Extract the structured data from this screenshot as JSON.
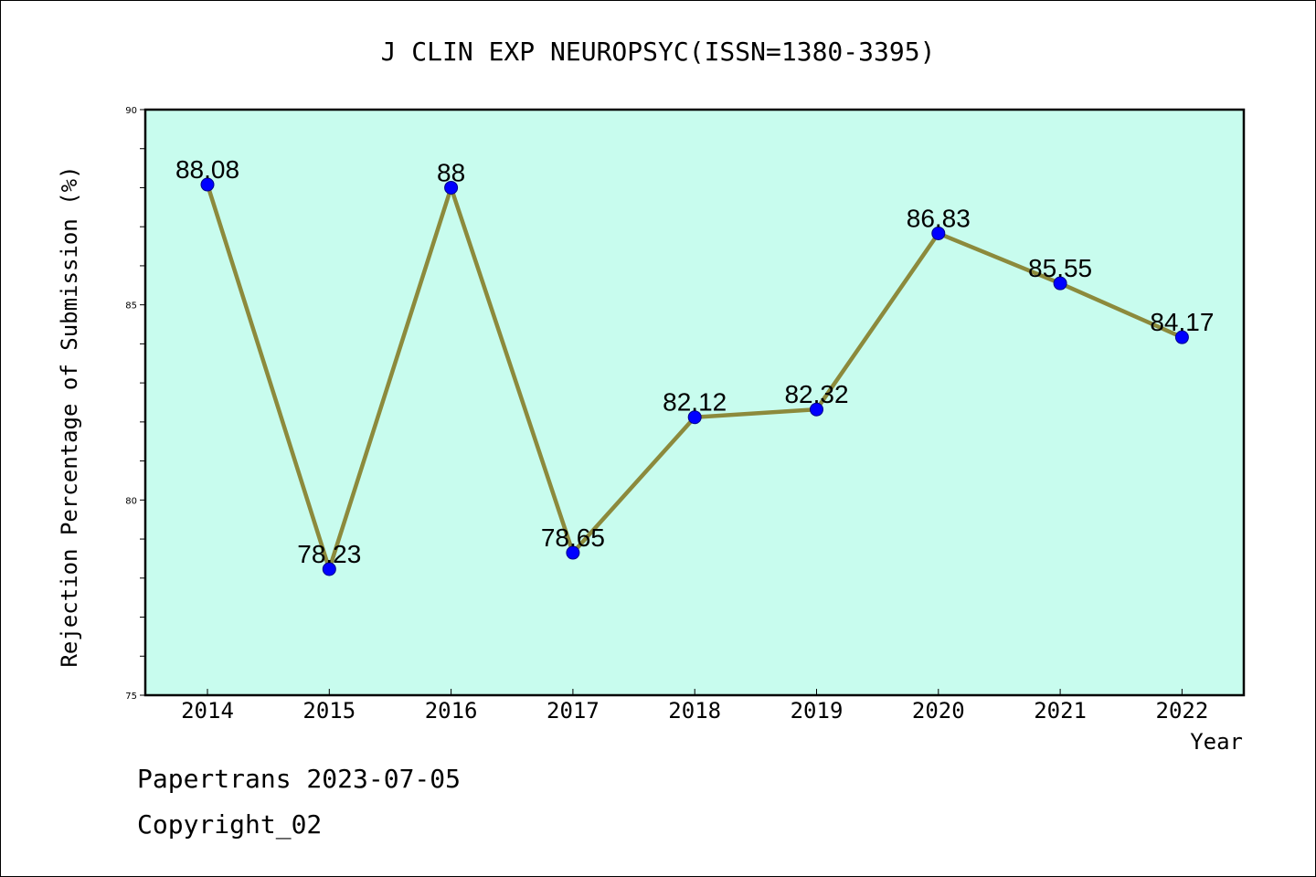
{
  "chart_data": {
    "type": "line",
    "title": "J CLIN EXP NEUROPSYC(ISSN=1380-3395)",
    "xlabel": "Year",
    "ylabel": "Rejection Percentage of Submission (%)",
    "categories": [
      "2014",
      "2015",
      "2016",
      "2017",
      "2018",
      "2019",
      "2020",
      "2021",
      "2022"
    ],
    "values": [
      88.08,
      78.23,
      88,
      78.65,
      82.12,
      82.32,
      86.83,
      85.55,
      84.17
    ],
    "data_labels": [
      "88.08",
      "78.23",
      "88",
      "78.65",
      "82.12",
      "82.32",
      "86.83",
      "85.55",
      "84.17"
    ],
    "ylim": [
      75,
      90
    ],
    "yticks": [
      75,
      80,
      85,
      90
    ],
    "grid": false,
    "colors": {
      "plot_background": "#c8fcee",
      "line": "#8c8a3c",
      "marker": "#0000ff"
    }
  },
  "footer": {
    "line1": "Papertrans 2023-07-05",
    "line2": "Copyright_02"
  }
}
